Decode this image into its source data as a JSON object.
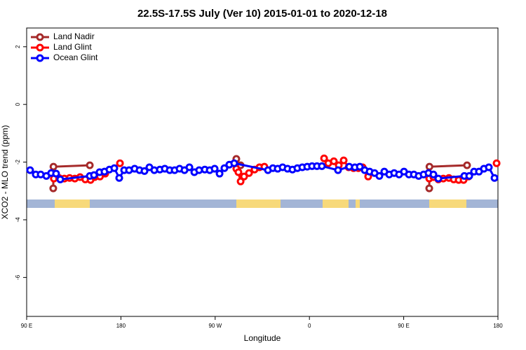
{
  "chart_data": {
    "type": "line",
    "title": "22.5S-17.5S July (Ver 10)   2015-01-01 to 2020-12-18",
    "x_label": "Longitude",
    "y_label": "XCO2 - MLO trend (ppm)",
    "xlim": [
      90,
      540
    ],
    "xticks": [
      {
        "value": 90,
        "label": "90 E"
      },
      180,
      {
        "value": 270,
        "label": "90 W"
      },
      {
        "value": 360,
        "label": "0"
      },
      {
        "value": 450,
        "label": "90 E"
      },
      {
        "value": 540,
        "label": "180"
      }
    ],
    "ylim": [
      -7.35,
      2.65
    ],
    "yticks": [
      2,
      0,
      -2,
      -4,
      -6
    ],
    "legend": "top-left",
    "series": [
      {
        "name": "Land Nadir",
        "color": "#a52a2a",
        "x": [
          115.4,
          115.6,
          150.3,
          200,
          290.2,
          294.3,
          400,
          474.4,
          474.6,
          510.5
        ],
        "values": [
          -2.91,
          -2.16,
          -2.11,
          null,
          -1.89,
          -2.11,
          null,
          -2.91,
          -2.16,
          -2.11
        ]
      },
      {
        "name": "Land Glint",
        "color": "#ff0000",
        "x": [
          116,
          121,
          126,
          131,
          136,
          141,
          146,
          151,
          155,
          160,
          165,
          179.1,
          230,
          290.2,
          292.2,
          294.3,
          297.6,
          302.3,
          307.6,
          312.3,
          317,
          340,
          374,
          378,
          383.3,
          388,
          392.7,
          397.4,
          402.1,
          406.7,
          410.8,
          416.1,
          440,
          474.4,
          478.4,
          483.1,
          487.8,
          493.2,
          497.8,
          502.5,
          507.2,
          511.9,
          525,
          538.7
        ],
        "values": [
          -2.57,
          -2.55,
          -2.57,
          -2.55,
          -2.57,
          -2.52,
          -2.6,
          -2.62,
          -2.52,
          -2.5,
          -2.4,
          -2.04,
          null,
          -2.23,
          -2.35,
          -2.67,
          -2.5,
          -2.38,
          -2.26,
          -2.18,
          -2.16,
          null,
          -1.87,
          -2.04,
          -1.97,
          -2.11,
          -1.94,
          -2.18,
          -2.21,
          -2.21,
          -2.18,
          -2.5,
          null,
          -2.57,
          -2.52,
          -2.6,
          -2.57,
          -2.55,
          -2.6,
          -2.62,
          -2.62,
          -2.5,
          null,
          -2.04
        ]
      },
      {
        "name": "Ocean Glint",
        "color": "#0000ff",
        "x": [
          93.3,
          98.7,
          103.4,
          108.8,
          113.4,
          118.1,
          122.1,
          150.3,
          154.3,
          159.6,
          164.3,
          169,
          173.7,
          178.4,
          183.1,
          187.8,
          193.1,
          197.8,
          202.5,
          207.2,
          211.9,
          217.2,
          221.9,
          226.6,
          231.3,
          236,
          240.7,
          245.4,
          250.1,
          254.7,
          260.1,
          264.8,
          269.5,
          274.2,
          278.8,
          283.5,
          288.2,
          320.4,
          325.1,
          329.7,
          334.4,
          339.1,
          343.8,
          348.5,
          353.2,
          357.9,
          362.5,
          367.2,
          371.9,
          387.3,
          398,
          403.4,
          408.1,
          412.8,
          417.5,
          422.2,
          426.8,
          431.5,
          436.2,
          440.9,
          445.6,
          450.3,
          455,
          459.7,
          464.3,
          469,
          473.7,
          478.4,
          483.1,
          507.9,
          512.6,
          517.2,
          521.9,
          526.6,
          531.3,
          536.7
        ],
        "values": [
          -2.28,
          -2.43,
          -2.43,
          -2.48,
          -2.38,
          -2.4,
          -2.6,
          -2.48,
          -2.45,
          -2.35,
          -2.33,
          -2.26,
          -2.21,
          -2.55,
          -2.28,
          -2.28,
          -2.23,
          -2.28,
          -2.31,
          -2.18,
          -2.28,
          -2.26,
          -2.23,
          -2.28,
          -2.28,
          -2.23,
          -2.28,
          -2.18,
          -2.35,
          -2.28,
          -2.26,
          -2.28,
          -2.23,
          -2.4,
          -2.21,
          -2.09,
          -2.04,
          -2.28,
          -2.21,
          -2.23,
          -2.18,
          -2.23,
          -2.26,
          -2.21,
          -2.18,
          -2.16,
          -2.14,
          -2.14,
          -2.14,
          -2.28,
          -2.16,
          -2.18,
          -2.16,
          -2.28,
          -2.33,
          -2.38,
          -2.48,
          -2.33,
          -2.43,
          -2.38,
          -2.43,
          -2.33,
          -2.43,
          -2.43,
          -2.48,
          -2.43,
          -2.38,
          -2.43,
          -2.57,
          -2.48,
          -2.48,
          -2.33,
          -2.33,
          -2.23,
          -2.18,
          -2.55
        ]
      }
    ]
  }
}
